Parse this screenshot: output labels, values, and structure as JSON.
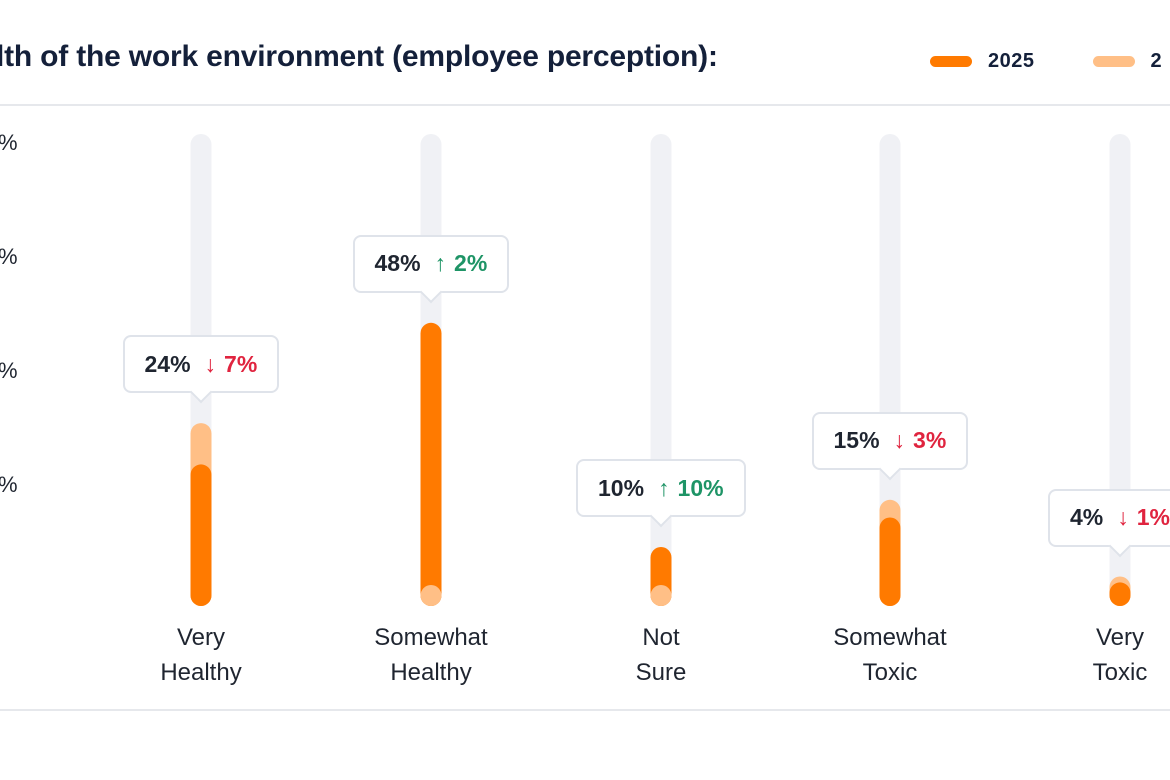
{
  "chart_data": {
    "type": "bar",
    "title": "lth of the work environment (employee perception):",
    "xlabel": "",
    "ylabel": "",
    "ylim": [
      0,
      80
    ],
    "yticks": [
      "%",
      "%",
      "%",
      "%"
    ],
    "legend": [
      {
        "name": "2025",
        "color": "#ff7a00"
      },
      {
        "name": "2",
        "color": "#ffbf86"
      }
    ],
    "categories": [
      [
        "Very",
        "Healthy"
      ],
      [
        "Somewhat",
        "Healthy"
      ],
      [
        "Not",
        "Sure"
      ],
      [
        "Somewhat",
        "Toxic"
      ],
      [
        "Very",
        "Toxic"
      ]
    ],
    "series": [
      {
        "name": "2025",
        "values": [
          24,
          48,
          10,
          15,
          4
        ]
      },
      {
        "name": "2",
        "values": [
          31,
          46,
          0,
          18,
          5
        ]
      }
    ],
    "tooltips": [
      {
        "value": "24%",
        "change": "7%",
        "direction": "down"
      },
      {
        "value": "48%",
        "change": "2%",
        "direction": "up"
      },
      {
        "value": "10%",
        "change": "10%",
        "direction": "up"
      },
      {
        "value": "15%",
        "change": "3%",
        "direction": "down"
      },
      {
        "value": "4%",
        "change": "1%",
        "direction": "down"
      }
    ],
    "colors": {
      "track": "#f0f1f5",
      "current": "#ff7a00",
      "previous": "#ffbf86"
    }
  }
}
